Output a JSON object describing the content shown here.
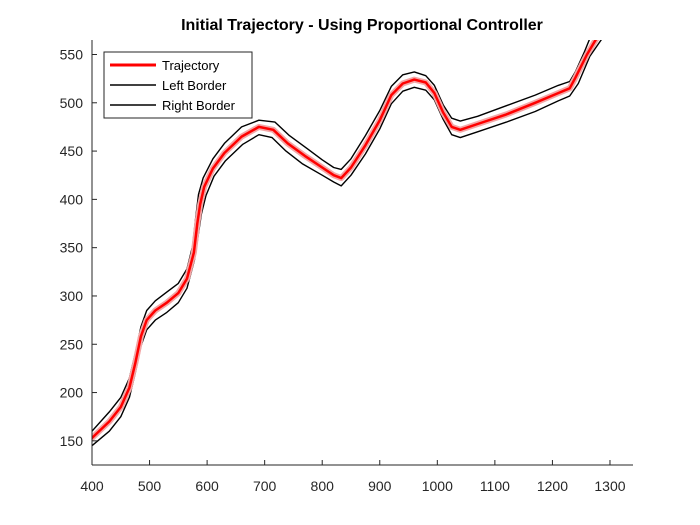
{
  "chart_data": {
    "type": "line",
    "title": "Initial Trajectory - Using Proportional Controller",
    "xlabel": "",
    "ylabel": "",
    "xlim": [
      400,
      1340
    ],
    "ylim": [
      125,
      565
    ],
    "xticks": [
      400,
      500,
      600,
      700,
      800,
      900,
      1000,
      1100,
      1200,
      1300
    ],
    "yticks": [
      150,
      200,
      250,
      300,
      350,
      400,
      450,
      500,
      550
    ],
    "grid": false,
    "legend_position": "top-left",
    "series": [
      {
        "name": "Trajectory",
        "color": "#ff0000",
        "points": [
          [
            400,
            153
          ],
          [
            430,
            170
          ],
          [
            450,
            185
          ],
          [
            465,
            205
          ],
          [
            475,
            230
          ],
          [
            485,
            258
          ],
          [
            495,
            275
          ],
          [
            510,
            285
          ],
          [
            530,
            293
          ],
          [
            550,
            303
          ],
          [
            565,
            318
          ],
          [
            577,
            345
          ],
          [
            583,
            375
          ],
          [
            588,
            395
          ],
          [
            595,
            413
          ],
          [
            610,
            432
          ],
          [
            630,
            448
          ],
          [
            660,
            465
          ],
          [
            690,
            475
          ],
          [
            715,
            472
          ],
          [
            740,
            458
          ],
          [
            770,
            445
          ],
          [
            800,
            433
          ],
          [
            820,
            425
          ],
          [
            833,
            422
          ],
          [
            850,
            433
          ],
          [
            875,
            456
          ],
          [
            900,
            482
          ],
          [
            920,
            508
          ],
          [
            940,
            520
          ],
          [
            960,
            524
          ],
          [
            980,
            521
          ],
          [
            995,
            510
          ],
          [
            1010,
            490
          ],
          [
            1025,
            475
          ],
          [
            1040,
            472
          ],
          [
            1070,
            478
          ],
          [
            1120,
            488
          ],
          [
            1170,
            500
          ],
          [
            1210,
            510
          ],
          [
            1230,
            515
          ],
          [
            1240,
            526
          ],
          [
            1260,
            550
          ],
          [
            1278,
            568
          ]
        ]
      },
      {
        "name": "Left Border",
        "color": "#000000",
        "points": [
          [
            400,
            160
          ],
          [
            430,
            180
          ],
          [
            450,
            195
          ],
          [
            465,
            215
          ],
          [
            475,
            240
          ],
          [
            485,
            268
          ],
          [
            495,
            285
          ],
          [
            510,
            295
          ],
          [
            530,
            304
          ],
          [
            550,
            313
          ],
          [
            565,
            328
          ],
          [
            575,
            352
          ],
          [
            580,
            380
          ],
          [
            585,
            405
          ],
          [
            593,
            422
          ],
          [
            610,
            442
          ],
          [
            630,
            458
          ],
          [
            660,
            475
          ],
          [
            690,
            482
          ],
          [
            718,
            480
          ],
          [
            743,
            466
          ],
          [
            775,
            452
          ],
          [
            800,
            441
          ],
          [
            820,
            433
          ],
          [
            833,
            431
          ],
          [
            850,
            442
          ],
          [
            875,
            466
          ],
          [
            900,
            492
          ],
          [
            920,
            517
          ],
          [
            940,
            529
          ],
          [
            960,
            532
          ],
          [
            980,
            528
          ],
          [
            995,
            518
          ],
          [
            1010,
            498
          ],
          [
            1025,
            484
          ],
          [
            1040,
            481
          ],
          [
            1070,
            486
          ],
          [
            1120,
            497
          ],
          [
            1170,
            508
          ],
          [
            1210,
            518
          ],
          [
            1230,
            522
          ],
          [
            1240,
            532
          ],
          [
            1255,
            552
          ],
          [
            1266,
            568
          ]
        ]
      },
      {
        "name": "Right Border",
        "color": "#000000",
        "points": [
          [
            400,
            145
          ],
          [
            430,
            160
          ],
          [
            450,
            175
          ],
          [
            465,
            195
          ],
          [
            475,
            220
          ],
          [
            485,
            248
          ],
          [
            495,
            265
          ],
          [
            510,
            275
          ],
          [
            530,
            283
          ],
          [
            550,
            293
          ],
          [
            565,
            308
          ],
          [
            578,
            337
          ],
          [
            585,
            365
          ],
          [
            590,
            385
          ],
          [
            598,
            404
          ],
          [
            612,
            424
          ],
          [
            632,
            440
          ],
          [
            662,
            457
          ],
          [
            690,
            467
          ],
          [
            713,
            464
          ],
          [
            737,
            450
          ],
          [
            765,
            437
          ],
          [
            800,
            425
          ],
          [
            820,
            418
          ],
          [
            833,
            414
          ],
          [
            850,
            425
          ],
          [
            875,
            447
          ],
          [
            900,
            473
          ],
          [
            920,
            499
          ],
          [
            940,
            512
          ],
          [
            960,
            516
          ],
          [
            980,
            513
          ],
          [
            995,
            503
          ],
          [
            1010,
            483
          ],
          [
            1025,
            467
          ],
          [
            1040,
            464
          ],
          [
            1070,
            470
          ],
          [
            1120,
            480
          ],
          [
            1170,
            491
          ],
          [
            1210,
            502
          ],
          [
            1230,
            507
          ],
          [
            1245,
            520
          ],
          [
            1265,
            548
          ],
          [
            1288,
            568
          ]
        ]
      }
    ]
  }
}
